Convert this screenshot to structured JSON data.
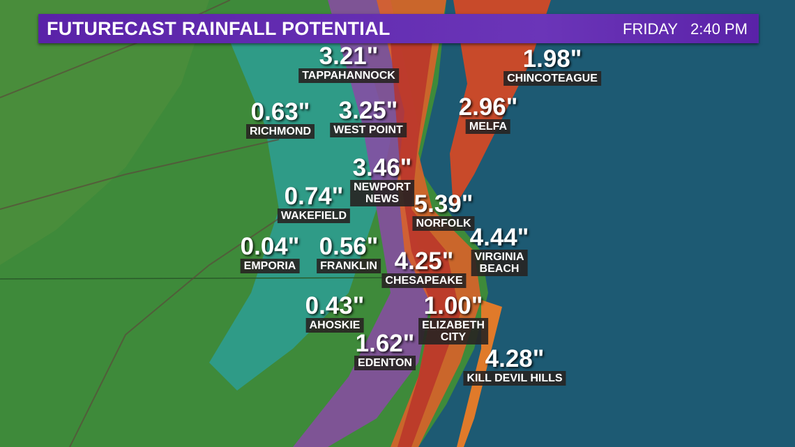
{
  "header": {
    "title": "FUTURECAST RAINFALL POTENTIAL",
    "day": "FRIDAY",
    "time": "2:40 PM"
  },
  "locations": [
    {
      "amount": "3.21\"",
      "label_lines": [
        "TAPPAHANNOCK"
      ]
    },
    {
      "amount": "1.98\"",
      "label_lines": [
        "CHINCOTEAGUE"
      ]
    },
    {
      "amount": "0.63\"",
      "label_lines": [
        "RICHMOND"
      ]
    },
    {
      "amount": "3.25\"",
      "label_lines": [
        "WEST POINT"
      ]
    },
    {
      "amount": "2.96\"",
      "label_lines": [
        "MELFA"
      ]
    },
    {
      "amount": "3.46\"",
      "label_lines": [
        "NEWPORT",
        "NEWS"
      ]
    },
    {
      "amount": "0.74\"",
      "label_lines": [
        "WAKEFIELD"
      ]
    },
    {
      "amount": "5.39\"",
      "label_lines": [
        "NORFOLK"
      ]
    },
    {
      "amount": "4.44\"",
      "label_lines": [
        "VIRGINIA",
        "BEACH"
      ]
    },
    {
      "amount": "0.04\"",
      "label_lines": [
        "EMPORIA"
      ]
    },
    {
      "amount": "0.56\"",
      "label_lines": [
        "FRANKLIN"
      ]
    },
    {
      "amount": "4.25\"",
      "label_lines": [
        "CHESAPEAKE"
      ]
    },
    {
      "amount": "0.43\"",
      "label_lines": [
        "AHOSKIE"
      ]
    },
    {
      "amount": "1.00\"",
      "label_lines": [
        "ELIZABETH",
        "CITY"
      ]
    },
    {
      "amount": "1.62\"",
      "label_lines": [
        "EDENTON"
      ]
    },
    {
      "amount": "4.28\"",
      "label_lines": [
        "KILL DEVIL HILLS"
      ]
    }
  ]
}
